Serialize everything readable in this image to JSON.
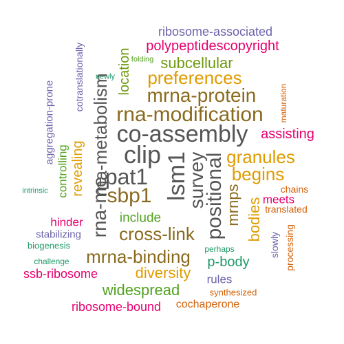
{
  "colors": {
    "olive": "#6e9a10",
    "green": "#52a120",
    "teal": "#1f9968",
    "gold": "#e09b00",
    "brown": "#8a6a1e",
    "gray": "#555555",
    "magenta": "#e5006e",
    "purple": "#6b64ac",
    "orange": "#d3620a"
  },
  "words": [
    "ribosome-associated",
    "polypeptidescopyright",
    "folding",
    "newly",
    "cotranslationally",
    "location",
    "subcellular",
    "preferences",
    "mrna-protein",
    "maturation",
    "rna-metabolism",
    "rna-modification",
    "aggregation-prone",
    "assisting",
    "co-assembly",
    "revealing",
    "controlling",
    "clip",
    "lsm1",
    "survey",
    "positional",
    "granules",
    "pat1",
    "begins",
    "rna-me",
    "intrinsic",
    "sbp1",
    "mrnps",
    "chains",
    "meets",
    "bodies",
    "translated",
    "include",
    "hinder",
    "cross-link",
    "stabilizing",
    "slowly",
    "biogenesis",
    "mrna-binding",
    "perhaps",
    "p-body",
    "processing",
    "challenge",
    "diversity",
    "ssb-ribosome",
    "rules",
    "widespread",
    "synthesized",
    "ribosome-bound",
    "cochaperone"
  ]
}
